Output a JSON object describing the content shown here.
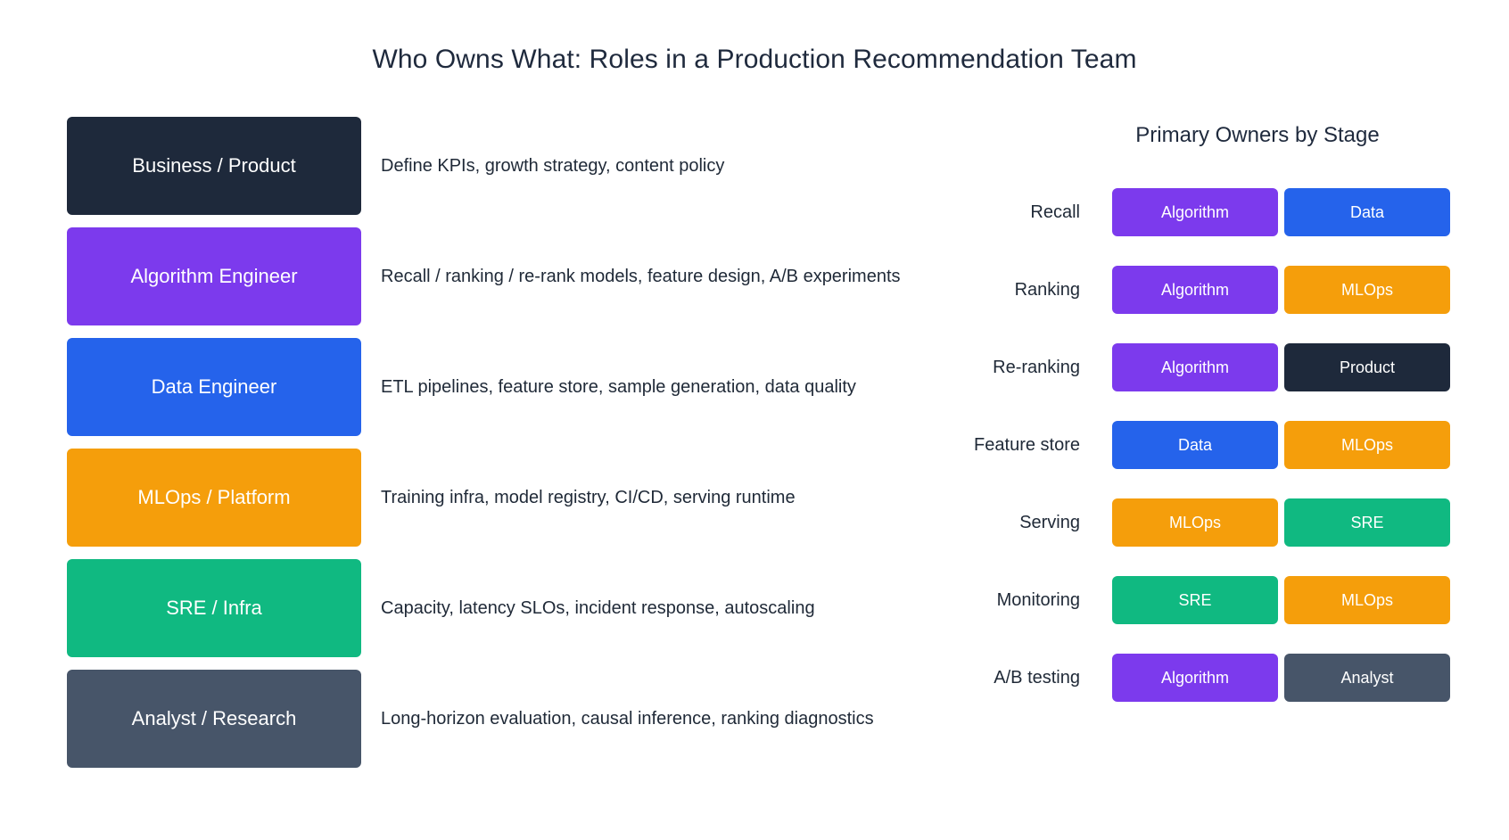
{
  "title": "Who Owns What: Roles in a Production Recommendation Team",
  "colors": {
    "product": "#1e293b",
    "algorithm": "#7c3aed",
    "data": "#2563eb",
    "mlops": "#f59e0b",
    "sre": "#10b981",
    "analyst": "#475569"
  },
  "roles": [
    {
      "label": "Business / Product",
      "description": "Define KPIs, growth strategy, content policy",
      "color": "#1e293b"
    },
    {
      "label": "Algorithm Engineer",
      "description": "Recall / ranking / re-rank models, feature design, A/B experiments",
      "color": "#7c3aed"
    },
    {
      "label": "Data Engineer",
      "description": "ETL pipelines, feature store, sample generation, data quality",
      "color": "#2563eb"
    },
    {
      "label": "MLOps / Platform",
      "description": "Training infra, model registry, CI/CD, serving runtime",
      "color": "#f59e0b"
    },
    {
      "label": "SRE / Infra",
      "description": "Capacity, latency SLOs, incident response, autoscaling",
      "color": "#10b981"
    },
    {
      "label": "Analyst / Research",
      "description": "Long-horizon evaluation, causal inference, ranking diagnostics",
      "color": "#475569"
    }
  ],
  "owners": {
    "title": "Primary Owners by Stage",
    "stages": [
      {
        "label": "Recall",
        "owners": [
          {
            "label": "Algorithm",
            "color": "#7c3aed"
          },
          {
            "label": "Data",
            "color": "#2563eb"
          }
        ]
      },
      {
        "label": "Ranking",
        "owners": [
          {
            "label": "Algorithm",
            "color": "#7c3aed"
          },
          {
            "label": "MLOps",
            "color": "#f59e0b"
          }
        ]
      },
      {
        "label": "Re-ranking",
        "owners": [
          {
            "label": "Algorithm",
            "color": "#7c3aed"
          },
          {
            "label": "Product",
            "color": "#1e293b"
          }
        ]
      },
      {
        "label": "Feature store",
        "owners": [
          {
            "label": "Data",
            "color": "#2563eb"
          },
          {
            "label": "MLOps",
            "color": "#f59e0b"
          }
        ]
      },
      {
        "label": "Serving",
        "owners": [
          {
            "label": "MLOps",
            "color": "#f59e0b"
          },
          {
            "label": "SRE",
            "color": "#10b981"
          }
        ]
      },
      {
        "label": "Monitoring",
        "owners": [
          {
            "label": "SRE",
            "color": "#10b981"
          },
          {
            "label": "MLOps",
            "color": "#f59e0b"
          }
        ]
      },
      {
        "label": "A/B testing",
        "owners": [
          {
            "label": "Algorithm",
            "color": "#7c3aed"
          },
          {
            "label": "Analyst",
            "color": "#475569"
          }
        ]
      }
    ]
  }
}
